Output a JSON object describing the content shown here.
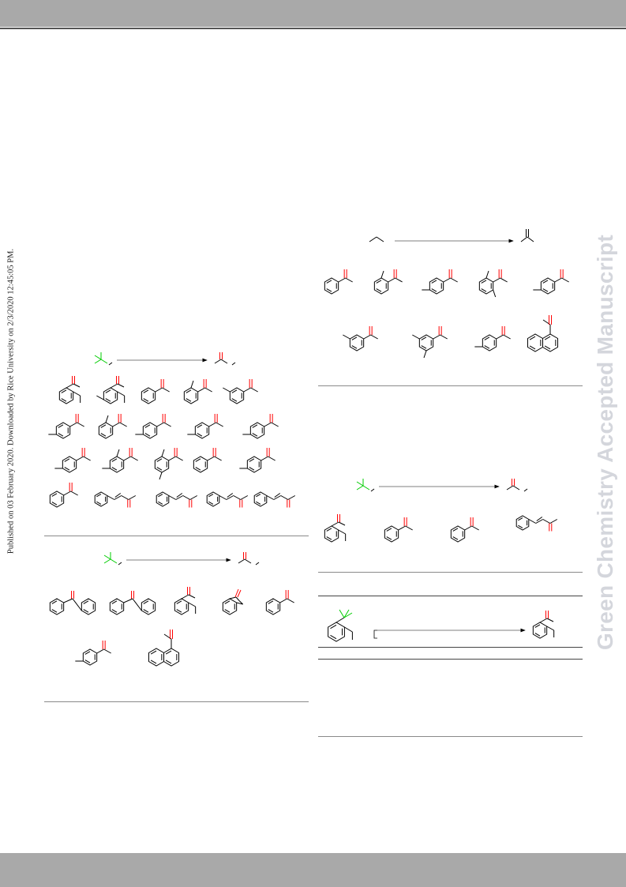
{
  "header": {
    "band_color": "#a9a9a9",
    "rule_color": "#555555"
  },
  "side_note": {
    "text": "Published on 03 February 2020. Downloaded by Rice University on 2/3/2020 12:45:05 PM."
  },
  "watermark": {
    "text": "Green Chemistry Accepted Manuscript",
    "color": "#d4d6dc"
  },
  "colors": {
    "bond": "#000000",
    "carbonyl_oxygen": "#ff0000",
    "reacting_group": "#00cc00"
  },
  "schemes": [
    {
      "panel": "left-top",
      "reactant_icon": "green-substituted-methyl-icon",
      "product_icon": "red-carbonyl-icon",
      "product_structures": [
        "tetralone-icon",
        "methyl-tetralone-icon",
        "acetophenone-icon",
        "ortho-methyl-acetophenone-icon",
        "meta-methyl-acetophenone-icon",
        "para-substituted-acetophenone-icon",
        "ortho-methyl-acetophenone-icon",
        "para-substituted-acetophenone-icon",
        "para-substituted-acetophenone-icon",
        "para-substituted-acetophenone-icon",
        "para-substituted-acetophenone-icon",
        "dimethyl-acetophenone-icon",
        "trimethyl-acetophenone-icon",
        "acetophenone-icon",
        "para-substituted-acetophenone-icon",
        "acetophenone-icon",
        "styryl-ketone-icon",
        "para-substituted-styryl-ketone-icon",
        "styryl-ketone-icon",
        "styryl-ketone-icon"
      ]
    },
    {
      "panel": "left-bottom",
      "reactant_icon": "green-substituted-methyl-icon",
      "product_icon": "red-carbonyl-icon",
      "product_structures": [
        "benzophenone-icon",
        "benzophenone-icon",
        "tetralone-icon",
        "indanone-icon",
        "acetophenone-icon",
        "isopropyl-aryl-ketone-icon",
        "acetonaphthone-icon"
      ]
    },
    {
      "panel": "right-top",
      "reactant_icon": "alkyl-chain-icon",
      "product_icon": "ketone-icon",
      "product_structures": [
        "acetophenone-icon",
        "ortho-methyl-acetophenone-icon",
        "para-substituted-acetophenone-icon",
        "dimethyl-acetophenone-icon",
        "para-substituted-acetophenone-icon",
        "meta-methyl-acetophenone-icon",
        "dimethyl-acetophenone-icon",
        "para-substituted-acetophenone-icon",
        "acetonaphthone-icon"
      ]
    },
    {
      "panel": "right-middle",
      "reactant_icon": "green-substituted-methyl-icon",
      "product_icon": "red-carbonyl-icon",
      "product_structures": [
        "tetralone-icon",
        "acetophenone-icon",
        "acetophenone-icon",
        "styryl-ketone-icon"
      ]
    },
    {
      "panel": "right-bottom",
      "reactant_icon": "tetralin-with-green-group-icon",
      "product_icon": "tetralone-icon",
      "product_structures": []
    }
  ]
}
